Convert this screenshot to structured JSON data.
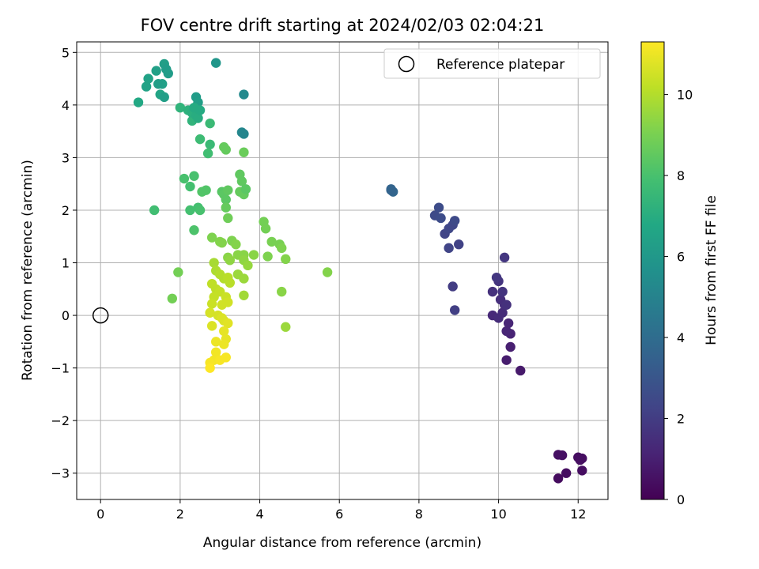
{
  "chart_data": {
    "type": "scatter",
    "title": "FOV centre drift starting at 2024/02/03 02:04:21",
    "xlabel": "Angular distance from reference (arcmin)",
    "ylabel": "Rotation from reference (arcmin)",
    "xlim": [
      -0.6,
      12.75
    ],
    "ylim": [
      -3.5,
      5.2
    ],
    "xticks": [
      0,
      2,
      4,
      6,
      8,
      10,
      12
    ],
    "yticks": [
      -3,
      -2,
      -1,
      0,
      1,
      2,
      3,
      4,
      5
    ],
    "grid": true,
    "legend": {
      "placement": "top-right",
      "entries": [
        "Reference platepar"
      ]
    },
    "reference_point": {
      "x": 0,
      "y": 0,
      "label": "Reference platepar"
    },
    "colorbar": {
      "label": "Hours from first FF file",
      "colormap": "viridis",
      "range": [
        0,
        11.3
      ],
      "ticks": [
        0,
        2,
        4,
        6,
        8,
        10
      ]
    },
    "points": [
      {
        "x": 11.5,
        "y": -2.65,
        "h": 0.5
      },
      {
        "x": 11.6,
        "y": -2.66,
        "h": 0.5
      },
      {
        "x": 12.0,
        "y": -2.7,
        "h": 0.4
      },
      {
        "x": 12.1,
        "y": -2.72,
        "h": 0.4
      },
      {
        "x": 12.05,
        "y": -2.75,
        "h": 0.45
      },
      {
        "x": 11.7,
        "y": -3.0,
        "h": 0.4
      },
      {
        "x": 11.5,
        "y": -3.1,
        "h": 0.35
      },
      {
        "x": 12.1,
        "y": -2.95,
        "h": 0.4
      },
      {
        "x": 10.55,
        "y": -1.05,
        "h": 0.8
      },
      {
        "x": 10.2,
        "y": -0.85,
        "h": 0.9
      },
      {
        "x": 10.3,
        "y": -0.6,
        "h": 1.0
      },
      {
        "x": 10.3,
        "y": -0.35,
        "h": 1.1
      },
      {
        "x": 10.2,
        "y": -0.3,
        "h": 1.2
      },
      {
        "x": 10.25,
        "y": -0.15,
        "h": 1.2
      },
      {
        "x": 9.85,
        "y": 0.0,
        "h": 1.3
      },
      {
        "x": 10.0,
        "y": -0.05,
        "h": 1.4
      },
      {
        "x": 10.1,
        "y": 0.05,
        "h": 1.4
      },
      {
        "x": 10.15,
        "y": 0.2,
        "h": 1.5
      },
      {
        "x": 10.05,
        "y": 0.3,
        "h": 1.5
      },
      {
        "x": 10.2,
        "y": 0.2,
        "h": 1.6
      },
      {
        "x": 9.85,
        "y": 0.45,
        "h": 1.6
      },
      {
        "x": 10.1,
        "y": 0.45,
        "h": 1.7
      },
      {
        "x": 10.0,
        "y": 0.65,
        "h": 1.7
      },
      {
        "x": 9.95,
        "y": 0.72,
        "h": 1.8
      },
      {
        "x": 10.15,
        "y": 1.1,
        "h": 1.8
      },
      {
        "x": 8.85,
        "y": 0.55,
        "h": 2.0
      },
      {
        "x": 8.9,
        "y": 0.1,
        "h": 2.1
      },
      {
        "x": 9.0,
        "y": 1.35,
        "h": 2.2
      },
      {
        "x": 8.75,
        "y": 1.28,
        "h": 2.3
      },
      {
        "x": 8.65,
        "y": 1.55,
        "h": 2.3
      },
      {
        "x": 8.75,
        "y": 1.65,
        "h": 2.4
      },
      {
        "x": 8.85,
        "y": 1.72,
        "h": 2.4
      },
      {
        "x": 8.9,
        "y": 1.8,
        "h": 2.5
      },
      {
        "x": 8.4,
        "y": 1.9,
        "h": 2.5
      },
      {
        "x": 8.55,
        "y": 1.85,
        "h": 2.6
      },
      {
        "x": 8.5,
        "y": 2.05,
        "h": 2.6
      },
      {
        "x": 7.3,
        "y": 2.4,
        "h": 3.6
      },
      {
        "x": 7.35,
        "y": 2.35,
        "h": 3.7
      },
      {
        "x": 7.3,
        "y": 2.38,
        "h": 3.6
      },
      {
        "x": 0.95,
        "y": 4.05,
        "h": 6.8
      },
      {
        "x": 1.15,
        "y": 4.35,
        "h": 6.5
      },
      {
        "x": 1.2,
        "y": 4.5,
        "h": 6.5
      },
      {
        "x": 1.4,
        "y": 4.65,
        "h": 6.4
      },
      {
        "x": 1.5,
        "y": 4.2,
        "h": 6.6
      },
      {
        "x": 1.55,
        "y": 4.4,
        "h": 6.4
      },
      {
        "x": 1.6,
        "y": 4.15,
        "h": 6.3
      },
      {
        "x": 1.6,
        "y": 4.78,
        "h": 6.3
      },
      {
        "x": 1.7,
        "y": 4.6,
        "h": 6.2
      },
      {
        "x": 1.65,
        "y": 4.68,
        "h": 6.2
      },
      {
        "x": 1.45,
        "y": 4.4,
        "h": 6.3
      },
      {
        "x": 2.9,
        "y": 4.8,
        "h": 5.9
      },
      {
        "x": 3.6,
        "y": 4.2,
        "h": 5.3
      },
      {
        "x": 3.55,
        "y": 3.48,
        "h": 5.2
      },
      {
        "x": 3.6,
        "y": 3.45,
        "h": 5.1
      },
      {
        "x": 2.4,
        "y": 4.15,
        "h": 6.2
      },
      {
        "x": 2.45,
        "y": 4.05,
        "h": 6.3
      },
      {
        "x": 2.0,
        "y": 3.95,
        "h": 7.3
      },
      {
        "x": 2.2,
        "y": 3.9,
        "h": 7.2
      },
      {
        "x": 2.3,
        "y": 3.7,
        "h": 7.3
      },
      {
        "x": 2.3,
        "y": 3.85,
        "h": 7.1
      },
      {
        "x": 2.4,
        "y": 3.8,
        "h": 7.0
      },
      {
        "x": 2.45,
        "y": 3.75,
        "h": 7.0
      },
      {
        "x": 2.5,
        "y": 3.9,
        "h": 6.9
      },
      {
        "x": 2.35,
        "y": 3.95,
        "h": 6.9
      },
      {
        "x": 2.75,
        "y": 3.65,
        "h": 7.6
      },
      {
        "x": 2.5,
        "y": 3.35,
        "h": 7.7
      },
      {
        "x": 2.75,
        "y": 3.25,
        "h": 7.6
      },
      {
        "x": 2.7,
        "y": 3.08,
        "h": 7.8
      },
      {
        "x": 3.1,
        "y": 3.2,
        "h": 8.6
      },
      {
        "x": 3.15,
        "y": 3.15,
        "h": 8.6
      },
      {
        "x": 3.6,
        "y": 3.1,
        "h": 8.7
      },
      {
        "x": 2.1,
        "y": 2.6,
        "h": 8.0
      },
      {
        "x": 2.35,
        "y": 2.65,
        "h": 8.0
      },
      {
        "x": 2.25,
        "y": 2.45,
        "h": 7.9
      },
      {
        "x": 2.55,
        "y": 2.35,
        "h": 8.2
      },
      {
        "x": 2.65,
        "y": 2.38,
        "h": 8.2
      },
      {
        "x": 3.05,
        "y": 2.35,
        "h": 8.3
      },
      {
        "x": 3.1,
        "y": 2.3,
        "h": 8.4
      },
      {
        "x": 3.15,
        "y": 2.2,
        "h": 8.4
      },
      {
        "x": 3.2,
        "y": 2.38,
        "h": 8.5
      },
      {
        "x": 3.5,
        "y": 2.68,
        "h": 8.5
      },
      {
        "x": 3.55,
        "y": 2.55,
        "h": 8.5
      },
      {
        "x": 3.5,
        "y": 2.35,
        "h": 8.6
      },
      {
        "x": 3.6,
        "y": 2.3,
        "h": 8.6
      },
      {
        "x": 3.65,
        "y": 2.4,
        "h": 8.4
      },
      {
        "x": 3.15,
        "y": 2.05,
        "h": 8.6
      },
      {
        "x": 3.2,
        "y": 1.85,
        "h": 8.8
      },
      {
        "x": 1.35,
        "y": 2.0,
        "h": 7.8
      },
      {
        "x": 2.25,
        "y": 2.0,
        "h": 7.9
      },
      {
        "x": 2.45,
        "y": 2.05,
        "h": 7.9
      },
      {
        "x": 2.5,
        "y": 2.0,
        "h": 8.0
      },
      {
        "x": 2.35,
        "y": 1.62,
        "h": 8.1
      },
      {
        "x": 2.8,
        "y": 1.48,
        "h": 9.1
      },
      {
        "x": 3.0,
        "y": 1.4,
        "h": 9.2
      },
      {
        "x": 3.05,
        "y": 1.38,
        "h": 9.2
      },
      {
        "x": 3.3,
        "y": 1.42,
        "h": 9.1
      },
      {
        "x": 3.4,
        "y": 1.35,
        "h": 9.2
      },
      {
        "x": 3.45,
        "y": 1.15,
        "h": 9.3
      },
      {
        "x": 3.2,
        "y": 1.1,
        "h": 9.3
      },
      {
        "x": 3.25,
        "y": 1.05,
        "h": 9.4
      },
      {
        "x": 3.6,
        "y": 1.15,
        "h": 9.3
      },
      {
        "x": 3.6,
        "y": 1.05,
        "h": 9.4
      },
      {
        "x": 3.85,
        "y": 1.15,
        "h": 9.3
      },
      {
        "x": 3.7,
        "y": 0.95,
        "h": 9.5
      },
      {
        "x": 3.6,
        "y": 0.7,
        "h": 9.6
      },
      {
        "x": 3.45,
        "y": 0.78,
        "h": 9.6
      },
      {
        "x": 4.1,
        "y": 1.78,
        "h": 8.9
      },
      {
        "x": 4.15,
        "y": 1.65,
        "h": 8.9
      },
      {
        "x": 4.3,
        "y": 1.4,
        "h": 9.0
      },
      {
        "x": 4.5,
        "y": 1.35,
        "h": 9.0
      },
      {
        "x": 4.55,
        "y": 1.28,
        "h": 9.1
      },
      {
        "x": 4.2,
        "y": 1.12,
        "h": 9.1
      },
      {
        "x": 4.65,
        "y": 1.07,
        "h": 9.2
      },
      {
        "x": 5.7,
        "y": 0.82,
        "h": 9.2
      },
      {
        "x": 1.95,
        "y": 0.82,
        "h": 8.9
      },
      {
        "x": 1.8,
        "y": 0.32,
        "h": 8.9
      },
      {
        "x": 4.55,
        "y": 0.45,
        "h": 9.3
      },
      {
        "x": 4.65,
        "y": -0.22,
        "h": 9.6
      },
      {
        "x": 3.6,
        "y": 0.38,
        "h": 9.7
      },
      {
        "x": 2.85,
        "y": 1.0,
        "h": 9.8
      },
      {
        "x": 2.9,
        "y": 0.85,
        "h": 9.9
      },
      {
        "x": 3.0,
        "y": 0.78,
        "h": 10.0
      },
      {
        "x": 3.1,
        "y": 0.7,
        "h": 10.0
      },
      {
        "x": 3.2,
        "y": 0.72,
        "h": 10.1
      },
      {
        "x": 3.25,
        "y": 0.62,
        "h": 10.1
      },
      {
        "x": 2.8,
        "y": 0.6,
        "h": 10.2
      },
      {
        "x": 2.9,
        "y": 0.5,
        "h": 10.2
      },
      {
        "x": 3.0,
        "y": 0.45,
        "h": 10.3
      },
      {
        "x": 2.85,
        "y": 0.35,
        "h": 10.3
      },
      {
        "x": 3.15,
        "y": 0.35,
        "h": 10.4
      },
      {
        "x": 2.8,
        "y": 0.22,
        "h": 10.4
      },
      {
        "x": 3.05,
        "y": 0.2,
        "h": 10.5
      },
      {
        "x": 3.2,
        "y": 0.25,
        "h": 10.5
      },
      {
        "x": 2.75,
        "y": 0.05,
        "h": 10.6
      },
      {
        "x": 2.95,
        "y": 0.0,
        "h": 10.6
      },
      {
        "x": 3.05,
        "y": -0.05,
        "h": 10.7
      },
      {
        "x": 3.1,
        "y": -0.1,
        "h": 10.7
      },
      {
        "x": 3.2,
        "y": -0.15,
        "h": 10.8
      },
      {
        "x": 2.8,
        "y": -0.2,
        "h": 10.7
      },
      {
        "x": 3.1,
        "y": -0.3,
        "h": 10.9
      },
      {
        "x": 3.15,
        "y": -0.45,
        "h": 10.9
      },
      {
        "x": 2.9,
        "y": -0.5,
        "h": 11.0
      },
      {
        "x": 3.1,
        "y": -0.55,
        "h": 11.0
      },
      {
        "x": 2.9,
        "y": -0.7,
        "h": 11.1
      },
      {
        "x": 2.85,
        "y": -0.85,
        "h": 11.1
      },
      {
        "x": 3.0,
        "y": -0.85,
        "h": 11.2
      },
      {
        "x": 2.75,
        "y": -0.9,
        "h": 11.2
      },
      {
        "x": 2.75,
        "y": -1.0,
        "h": 11.3
      },
      {
        "x": 3.15,
        "y": -0.8,
        "h": 11.2
      }
    ]
  }
}
